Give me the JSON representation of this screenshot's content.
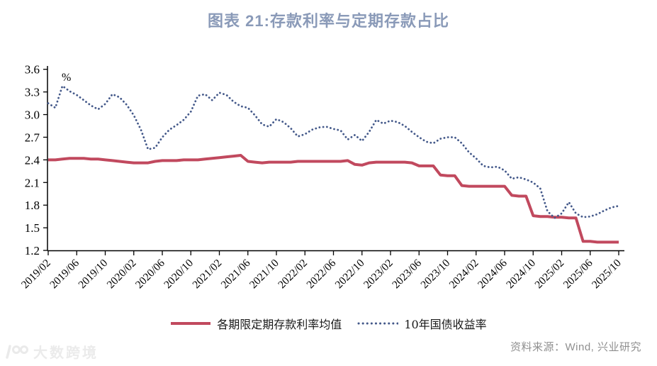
{
  "title": "图表 21:存款利率与定期存款占比",
  "source": "资料来源：Wind, 兴业研究",
  "watermark": "大数跨境",
  "legend": [
    {
      "label": "各期限定期存款利率均值",
      "style": "solid",
      "color": "#c1495e"
    },
    {
      "label": "10年国债收益率",
      "style": "dotted",
      "color": "#44598a"
    }
  ],
  "chart_data": {
    "type": "line",
    "title": "图表 21:存款利率与定期存款占比",
    "unit_label": "%",
    "ylim": [
      1.2,
      3.6
    ],
    "yticks": [
      3.6,
      3.3,
      3.0,
      2.7,
      2.4,
      2.1,
      1.8,
      1.5,
      1.2
    ],
    "grid": false,
    "legend_position": "bottom",
    "x_tick_labels": [
      "2019/02",
      "2019/06",
      "2019/10",
      "2020/02",
      "2020/06",
      "2020/10",
      "2021/02",
      "2021/06",
      "2021/10",
      "2022/02",
      "2022/06",
      "2022/10",
      "2023/02",
      "2023/06",
      "2023/10",
      "2024/02",
      "2024/06",
      "2024/10",
      "2025/02",
      "2025/06",
      "2025/10"
    ],
    "x": [
      "2019/02",
      "2019/03",
      "2019/04",
      "2019/05",
      "2019/06",
      "2019/07",
      "2019/08",
      "2019/09",
      "2019/10",
      "2019/11",
      "2019/12",
      "2020/01",
      "2020/02",
      "2020/03",
      "2020/04",
      "2020/05",
      "2020/06",
      "2020/07",
      "2020/08",
      "2020/09",
      "2020/10",
      "2020/11",
      "2020/12",
      "2021/01",
      "2021/02",
      "2021/03",
      "2021/04",
      "2021/05",
      "2021/06",
      "2021/07",
      "2021/08",
      "2021/09",
      "2021/10",
      "2021/11",
      "2021/12",
      "2022/01",
      "2022/02",
      "2022/03",
      "2022/04",
      "2022/05",
      "2022/06",
      "2022/07",
      "2022/08",
      "2022/09",
      "2022/10",
      "2022/11",
      "2022/12",
      "2023/01",
      "2023/02",
      "2023/03",
      "2023/04",
      "2023/05",
      "2023/06",
      "2023/07",
      "2023/08",
      "2023/09",
      "2023/10",
      "2023/11",
      "2023/12",
      "2024/01",
      "2024/02",
      "2024/03",
      "2024/04",
      "2024/05",
      "2024/06",
      "2024/07",
      "2024/08",
      "2024/09",
      "2024/10",
      "2024/11",
      "2024/12",
      "2025/01",
      "2025/02",
      "2025/03",
      "2025/04",
      "2025/05",
      "2025/06",
      "2025/07",
      "2025/08",
      "2025/09",
      "2025/10"
    ],
    "series": [
      {
        "name": "各期限定期存款利率均值",
        "style": "solid",
        "color": "#c1495e",
        "values": [
          2.4,
          2.4,
          2.41,
          2.42,
          2.42,
          2.42,
          2.41,
          2.41,
          2.4,
          2.39,
          2.38,
          2.37,
          2.36,
          2.36,
          2.36,
          2.38,
          2.39,
          2.39,
          2.39,
          2.4,
          2.4,
          2.4,
          2.41,
          2.42,
          2.43,
          2.44,
          2.45,
          2.46,
          2.38,
          2.37,
          2.36,
          2.37,
          2.37,
          2.37,
          2.37,
          2.38,
          2.38,
          2.38,
          2.38,
          2.38,
          2.38,
          2.38,
          2.39,
          2.34,
          2.33,
          2.36,
          2.37,
          2.37,
          2.37,
          2.37,
          2.37,
          2.36,
          2.32,
          2.32,
          2.32,
          2.2,
          2.19,
          2.19,
          2.06,
          2.05,
          2.05,
          2.05,
          2.05,
          2.05,
          2.05,
          1.93,
          1.92,
          1.92,
          1.66,
          1.65,
          1.65,
          1.64,
          1.64,
          1.63,
          1.63,
          1.32,
          1.32,
          1.31,
          1.31,
          1.31,
          1.31
        ]
      },
      {
        "name": "10年国债收益率",
        "style": "dotted",
        "color": "#44598a",
        "values": [
          3.15,
          3.09,
          3.38,
          3.31,
          3.26,
          3.19,
          3.12,
          3.07,
          3.14,
          3.27,
          3.23,
          3.13,
          2.99,
          2.8,
          2.54,
          2.56,
          2.7,
          2.8,
          2.86,
          2.93,
          3.04,
          3.25,
          3.27,
          3.19,
          3.29,
          3.26,
          3.17,
          3.11,
          3.09,
          2.99,
          2.87,
          2.84,
          2.94,
          2.9,
          2.82,
          2.71,
          2.74,
          2.8,
          2.83,
          2.84,
          2.81,
          2.79,
          2.67,
          2.73,
          2.65,
          2.77,
          2.93,
          2.88,
          2.92,
          2.9,
          2.85,
          2.77,
          2.7,
          2.64,
          2.62,
          2.68,
          2.7,
          2.7,
          2.62,
          2.5,
          2.42,
          2.32,
          2.3,
          2.31,
          2.26,
          2.15,
          2.17,
          2.14,
          2.1,
          2.02,
          1.72,
          1.63,
          1.69,
          1.84,
          1.69,
          1.64,
          1.65,
          1.68,
          1.73,
          1.77,
          1.79
        ]
      }
    ]
  }
}
